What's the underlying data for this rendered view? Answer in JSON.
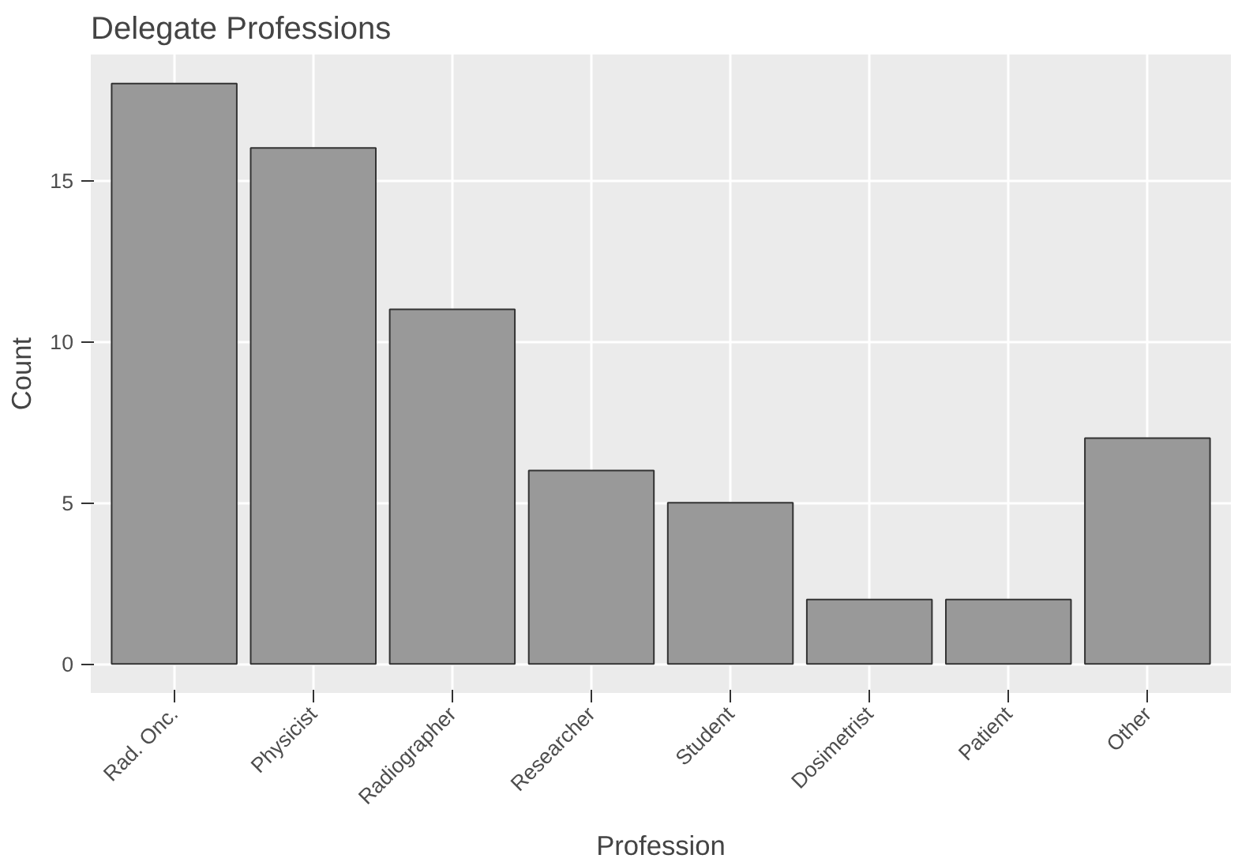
{
  "chart_data": {
    "type": "bar",
    "title": "Delegate Professions",
    "xlabel": "Profession",
    "ylabel": "Count",
    "categories": [
      "Rad. Onc.",
      "Physicist",
      "Radiographer",
      "Researcher",
      "Student",
      "Dosimetrist",
      "Patient",
      "Other"
    ],
    "values": [
      18,
      16,
      11,
      6,
      5,
      2,
      2,
      7
    ],
    "color": "#999999",
    "ylim": [
      -0.9,
      18.9
    ],
    "yticks": [
      0,
      5,
      10,
      15
    ],
    "grid": true
  }
}
